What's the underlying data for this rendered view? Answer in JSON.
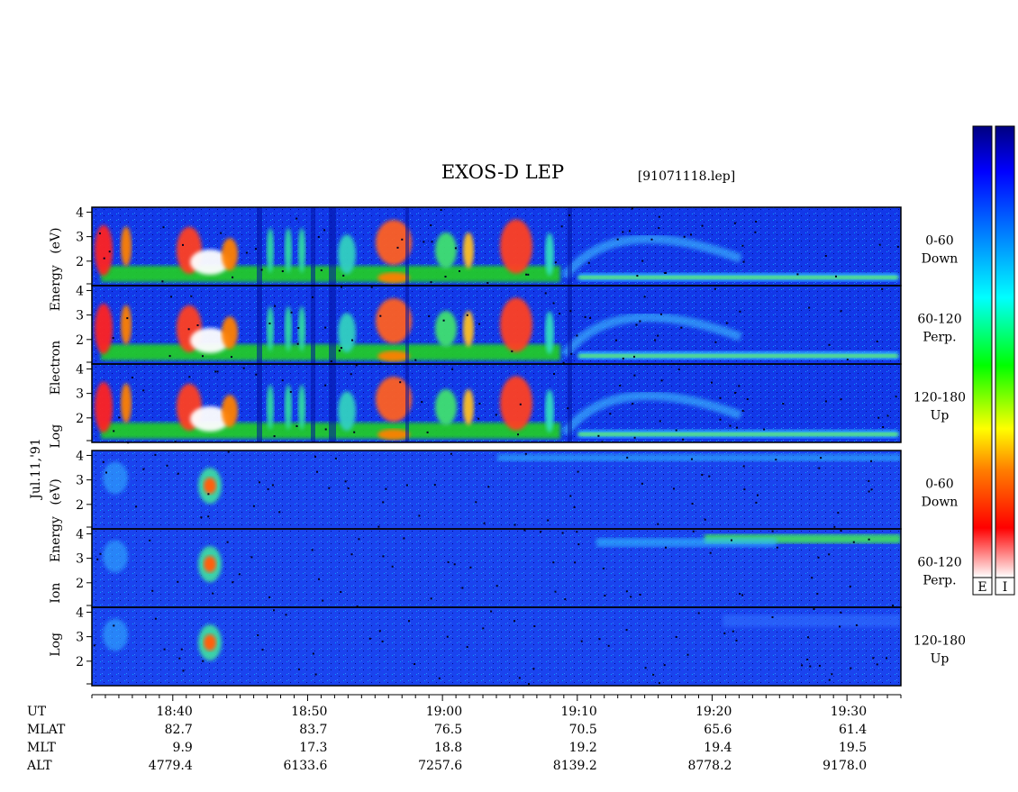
{
  "chart_data": {
    "type": "heatmap",
    "title": "EXOS-D LEP",
    "subtitle": "[91071118.lep]",
    "date_label": "Jul.11,'91",
    "electron_label": [
      "Log",
      "Electron",
      "Energy",
      "(eV)"
    ],
    "ion_label": [
      "Log",
      "Ion",
      "Energy",
      "(eV)"
    ],
    "panels": [
      {
        "species": "electron",
        "angle_range": "0-60",
        "direction": "Down"
      },
      {
        "species": "electron",
        "angle_range": "60-120",
        "direction": "Perp."
      },
      {
        "species": "electron",
        "angle_range": "120-180",
        "direction": "Up"
      },
      {
        "species": "ion",
        "angle_range": "0-60",
        "direction": "Down"
      },
      {
        "species": "ion",
        "angle_range": "60-120",
        "direction": "Perp."
      },
      {
        "species": "ion",
        "angle_range": "120-180",
        "direction": "Up"
      }
    ],
    "y_ticks": [
      "4",
      "3",
      "2"
    ],
    "ylim": [
      1,
      4.2
    ],
    "x_axis": {
      "start": "18:34",
      "end": "19:34",
      "major_ticks": [
        "18:40",
        "18:50",
        "19:00",
        "19:10",
        "19:20",
        "19:30"
      ]
    },
    "ephemeris": [
      {
        "label": "UT",
        "values": [
          "18:40",
          "18:50",
          "19:00",
          "19:10",
          "19:20",
          "19:30"
        ]
      },
      {
        "label": "MLAT",
        "values": [
          "82.7",
          "83.7",
          "76.5",
          "70.5",
          "65.6",
          "61.4"
        ]
      },
      {
        "label": "MLT",
        "values": [
          "9.9",
          "17.3",
          "18.8",
          "19.2",
          "19.4",
          "19.5"
        ]
      },
      {
        "label": "ALT",
        "values": [
          "4779.4",
          "6133.6",
          "7257.6",
          "8139.2",
          "8778.2",
          "9178.0"
        ]
      }
    ],
    "colorbar_labels": [
      "E",
      "I"
    ],
    "colorscale": [
      "#ffffff",
      "#ff0000",
      "#ff8000",
      "#ffff00",
      "#00ff00",
      "#00ffff",
      "#0080ff",
      "#0000ff",
      "#000080"
    ]
  }
}
